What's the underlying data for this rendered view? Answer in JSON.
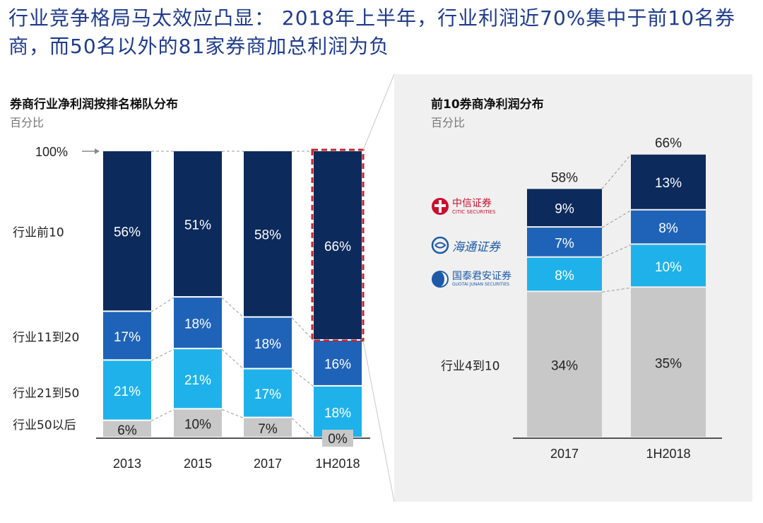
{
  "headline": "行业竞争格局马太效应凸显： 2018年上半年，行业利润近70%集中于前10名券商，而50名以外的81家券商加总利润为负",
  "left_panel": {
    "subtitle": "券商行业净利润按排名梯队分布",
    "unit": "百分比"
  },
  "right_panel": {
    "subtitle": "前10券商净利润分布",
    "unit": "百分比"
  },
  "logos": [
    {
      "name": "citic-securities-logo",
      "text": "中信证券",
      "subtext": "CITIC SECURITIES",
      "color": "#c8102e"
    },
    {
      "name": "haitong-securities-logo",
      "text": "海通证券",
      "subtext": "",
      "color": "#1d5aa8"
    },
    {
      "name": "guotai-junan-logo",
      "text": "国泰君安证券",
      "subtext": "GUOTAI JUNAN SECURITIES",
      "color": "#1d5aa8"
    }
  ],
  "colors": {
    "navy": "#0c2a5c",
    "blue": "#1f63b8",
    "cyan": "#1fb2ea",
    "gray": "#c8c8c8",
    "highlight": "#c0242c"
  },
  "chart_data": [
    {
      "type": "bar",
      "stacked": true,
      "title": "券商行业净利润按排名梯队分布",
      "unit": "百分比",
      "categories": [
        "2013",
        "2015",
        "2017",
        "1H2018"
      ],
      "series": [
        {
          "name": "行业50以后",
          "values": [
            6,
            10,
            7,
            0
          ],
          "labels": [
            "6%",
            "10%",
            "7%",
            "0%"
          ],
          "color": "#c8c8c8"
        },
        {
          "name": "行业21到50",
          "values": [
            21,
            21,
            17,
            18
          ],
          "labels": [
            "21%",
            "21%",
            "17%",
            "18%"
          ],
          "color": "#1fb2ea"
        },
        {
          "name": "行业11到20",
          "values": [
            17,
            18,
            18,
            16
          ],
          "labels": [
            "17%",
            "18%",
            "18%",
            "16%"
          ],
          "color": "#1f63b8"
        },
        {
          "name": "行业前10",
          "values": [
            56,
            51,
            58,
            66
          ],
          "labels": [
            "56%",
            "51%",
            "58%",
            "66%"
          ],
          "color": "#0c2a5c"
        }
      ],
      "total_label": "100%",
      "highlighted_category": "1H2018"
    },
    {
      "type": "bar",
      "stacked": true,
      "title": "前10券商净利润分布",
      "unit": "百分比",
      "categories": [
        "2017",
        "1H2018"
      ],
      "series": [
        {
          "name": "行业4到10",
          "values": [
            34,
            35
          ],
          "labels": [
            "34%",
            "35%"
          ],
          "color": "#c8c8c8"
        },
        {
          "name": "国泰君安证券",
          "values": [
            8,
            10
          ],
          "labels": [
            "8%",
            "10%"
          ],
          "color": "#1fb2ea"
        },
        {
          "name": "海通证券",
          "values": [
            7,
            8
          ],
          "labels": [
            "7%",
            "8%"
          ],
          "color": "#1f63b8"
        },
        {
          "name": "中信证券",
          "values": [
            9,
            13
          ],
          "labels": [
            "9%",
            "13%"
          ],
          "color": "#0c2a5c"
        }
      ],
      "totals": [
        "58%",
        "66%"
      ]
    }
  ]
}
